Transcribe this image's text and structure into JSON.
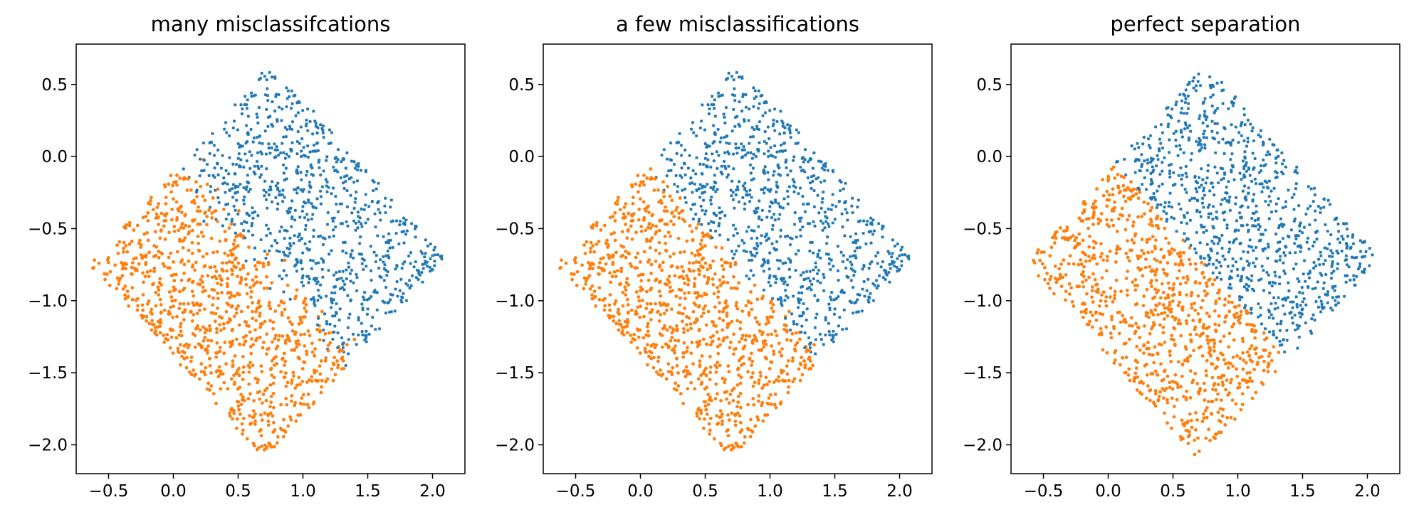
{
  "chart_data": [
    {
      "type": "scatter",
      "title": "many misclassifcations",
      "xlim": [
        -0.75,
        2.25
      ],
      "ylim": [
        -2.2,
        0.78
      ],
      "xticks": [
        -0.5,
        0.0,
        0.5,
        1.0,
        1.5,
        2.0
      ],
      "yticks": [
        -2.0,
        -1.5,
        -1.0,
        -0.5,
        0.0,
        0.5
      ],
      "xtick_labels": [
        "−0.5",
        "0.0",
        "0.5",
        "1.0",
        "1.5",
        "2.0"
      ],
      "ytick_labels": [
        "−2.0",
        "−1.5",
        "−1.0",
        "−0.5",
        "0.0",
        "0.5"
      ],
      "grid": false,
      "series": [
        {
          "color": "#1f77b4",
          "marker": "x",
          "region": {
            "corners": [
              [
                0.75,
                0.65
              ],
              [
                2.1,
                -0.7
              ],
              [
                1.4,
                -1.4
              ],
              [
                0.05,
                -0.05
              ]
            ],
            "boundary": "band around line y = -x, overlapping orange",
            "approx_count": 900
          }
        },
        {
          "color": "#ff7f0e",
          "marker": "o",
          "region": {
            "corners": [
              [
                0.05,
                -0.05
              ],
              [
                1.4,
                -1.4
              ],
              [
                0.7,
                -2.1
              ],
              [
                -0.65,
                -0.75
              ]
            ],
            "boundary": "band around line y = -x, overlapping blue",
            "approx_count": 900
          }
        }
      ]
    },
    {
      "type": "scatter",
      "title": "a few misclassifications",
      "xlim": [
        -0.75,
        2.25
      ],
      "ylim": [
        -2.2,
        0.78
      ],
      "xticks": [
        -0.5,
        0.0,
        0.5,
        1.0,
        1.5,
        2.0
      ],
      "yticks": [
        -2.0,
        -1.5,
        -1.0,
        -0.5,
        0.0,
        0.5
      ],
      "xtick_labels": [
        "−0.5",
        "0.0",
        "0.5",
        "1.0",
        "1.5",
        "2.0"
      ],
      "ytick_labels": [
        "−2.0",
        "−1.5",
        "−1.0",
        "−0.5",
        "0.0",
        "0.5"
      ],
      "grid": false,
      "series": [
        {
          "color": "#1f77b4",
          "marker": "x",
          "region": {
            "corners": [
              [
                0.75,
                0.65
              ],
              [
                2.1,
                -0.7
              ],
              [
                1.4,
                -1.4
              ],
              [
                0.05,
                -0.05
              ]
            ],
            "boundary": "line y = -x with slight overlap",
            "approx_count": 900
          }
        },
        {
          "color": "#ff7f0e",
          "marker": "o",
          "region": {
            "corners": [
              [
                0.05,
                -0.05
              ],
              [
                1.4,
                -1.4
              ],
              [
                0.7,
                -2.1
              ],
              [
                -0.65,
                -0.75
              ]
            ],
            "boundary": "line y = -x with slight overlap",
            "approx_count": 900
          }
        }
      ]
    },
    {
      "type": "scatter",
      "title": "perfect separation",
      "xlim": [
        -0.75,
        2.25
      ],
      "ylim": [
        -2.2,
        0.78
      ],
      "xticks": [
        -0.5,
        0.0,
        0.5,
        1.0,
        1.5,
        2.0
      ],
      "yticks": [
        -2.0,
        -1.5,
        -1.0,
        -0.5,
        0.0,
        0.5
      ],
      "xtick_labels": [
        "−0.5",
        "0.0",
        "0.5",
        "1.0",
        "1.5",
        "2.0"
      ],
      "ytick_labels": [
        "−2.0",
        "−1.5",
        "−1.0",
        "−0.5",
        "0.0",
        "0.5"
      ],
      "grid": false,
      "series": [
        {
          "color": "#1f77b4",
          "marker": "x",
          "region": {
            "corners": [
              [
                0.75,
                0.65
              ],
              [
                2.1,
                -0.7
              ],
              [
                1.4,
                -1.4
              ],
              [
                0.05,
                -0.05
              ]
            ],
            "boundary": "line y = -x, no overlap",
            "approx_count": 900
          }
        },
        {
          "color": "#ff7f0e",
          "marker": "o",
          "region": {
            "corners": [
              [
                0.05,
                -0.05
              ],
              [
                1.4,
                -1.4
              ],
              [
                0.7,
                -2.1
              ],
              [
                -0.65,
                -0.75
              ]
            ],
            "boundary": "line y = -x, no overlap",
            "approx_count": 900
          }
        }
      ]
    }
  ]
}
